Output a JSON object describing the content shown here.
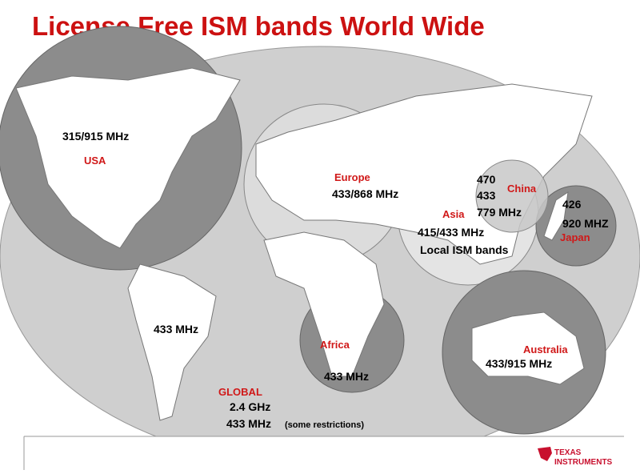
{
  "title": "License Free ISM bands World Wide",
  "regions": [
    {
      "name": "USA",
      "frequencies": [
        "315/915 MHz"
      ]
    },
    {
      "name": "Europe",
      "frequencies": [
        "433/868 MHz"
      ]
    },
    {
      "name": "China",
      "frequencies": [
        "470",
        "433",
        "779 MHz"
      ]
    },
    {
      "name": "Asia",
      "frequencies": [
        "415/433 MHz",
        "Local ISM bands"
      ]
    },
    {
      "name": "Japan",
      "frequencies": [
        "426",
        "920 MHZ"
      ]
    },
    {
      "name": "Africa",
      "frequencies": [
        "433 MHz"
      ]
    },
    {
      "name": "Australia",
      "frequencies": [
        "433/915 MHz"
      ]
    }
  ],
  "south_america": {
    "frequencies": [
      "433 MHz"
    ]
  },
  "global": {
    "name": "GLOBAL",
    "frequencies": [
      "2.4 GHz",
      "433 MHz"
    ],
    "note": "(some restrictions)"
  },
  "logo": {
    "line1": "TEXAS",
    "line2": "INSTRUMENTS"
  }
}
